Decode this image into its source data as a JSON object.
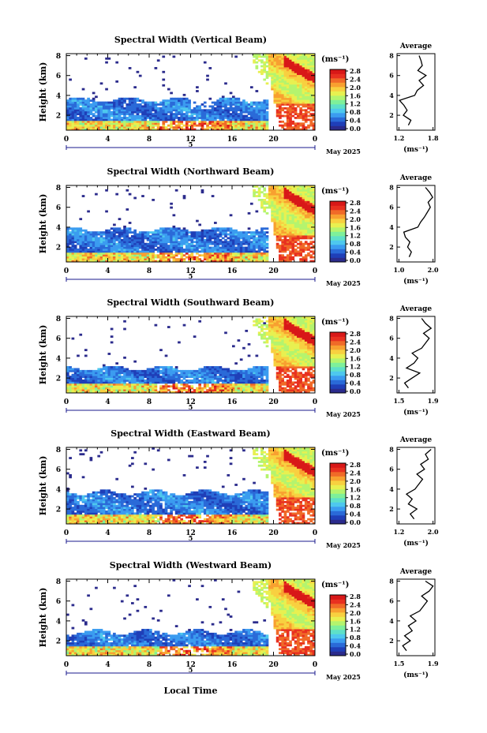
{
  "colors": {
    "colormap": [
      "#2b2b8c",
      "#1f3fb8",
      "#2a6ad8",
      "#3b9cf0",
      "#4ec8ee",
      "#5ee0c8",
      "#7ef09a",
      "#b4f46e",
      "#e8f050",
      "#f8d040",
      "#f8a030",
      "#f06a28",
      "#e83020",
      "#d81818"
    ],
    "missing": "#ffffff"
  },
  "global": {
    "xlabel_bottom": "Local Time",
    "date_label": "May 2025",
    "unit_label": "(ms⁻¹)",
    "avg_title": "Average",
    "avg_xlabel": "(ms⁻¹)",
    "ylabel": "Height (km)",
    "minor_marker": "5"
  },
  "chart_data": [
    {
      "type": "heatmap",
      "title": "Spectral Width (Vertical Beam)",
      "xlabel": "Local Time",
      "ylabel": "Height (km)",
      "x_ticks": [
        "0",
        "4",
        "8",
        "12",
        "16",
        "20",
        "0"
      ],
      "xlim": [
        0,
        24
      ],
      "y_ticks": [
        "2",
        "4",
        "6",
        "8"
      ],
      "ylim": [
        0.5,
        8.2
      ],
      "colorbar": {
        "ticks": [
          "0.0",
          "0.4",
          "0.8",
          "1.2",
          "1.6",
          "2.0",
          "2.4",
          "2.8"
        ],
        "range": [
          0,
          2.8
        ]
      },
      "average": {
        "x_ticks": [
          "1.2",
          "1.8"
        ],
        "xlim": [
          1.2,
          1.8
        ],
        "profile": [
          [
            1.0,
            1.38
          ],
          [
            1.5,
            1.42
          ],
          [
            2.0,
            1.3
          ],
          [
            2.5,
            1.36
          ],
          [
            3.0,
            1.31
          ],
          [
            3.5,
            1.24
          ],
          [
            4.0,
            1.48
          ],
          [
            4.5,
            1.52
          ],
          [
            5.0,
            1.62
          ],
          [
            5.5,
            1.55
          ],
          [
            6.0,
            1.66
          ],
          [
            6.5,
            1.53
          ],
          [
            7.0,
            1.6
          ],
          [
            7.5,
            1.58
          ],
          [
            8.0,
            1.55
          ]
        ]
      }
    },
    {
      "type": "heatmap",
      "title": "Spectral Width (Northward Beam)",
      "xlabel": "Local Time",
      "ylabel": "Height (km)",
      "x_ticks": [
        "0",
        "4",
        "8",
        "12",
        "16",
        "20",
        "0"
      ],
      "xlim": [
        0,
        24
      ],
      "y_ticks": [
        "2",
        "4",
        "6",
        "8"
      ],
      "ylim": [
        0.5,
        8.2
      ],
      "colorbar": {
        "ticks": [
          "0.0",
          "0.4",
          "0.8",
          "1.2",
          "1.6",
          "2.0",
          "2.4",
          "2.8"
        ],
        "range": [
          0,
          2.8
        ]
      },
      "average": {
        "x_ticks": [
          "1.0",
          "2.0"
        ],
        "xlim": [
          1.0,
          2.0
        ],
        "profile": [
          [
            1.0,
            1.32
          ],
          [
            1.5,
            1.38
          ],
          [
            2.0,
            1.28
          ],
          [
            2.5,
            1.34
          ],
          [
            3.0,
            1.22
          ],
          [
            3.5,
            1.18
          ],
          [
            4.0,
            1.55
          ],
          [
            4.5,
            1.62
          ],
          [
            5.0,
            1.72
          ],
          [
            5.5,
            1.8
          ],
          [
            6.0,
            1.88
          ],
          [
            6.5,
            1.82
          ],
          [
            7.0,
            1.94
          ],
          [
            7.5,
            1.86
          ],
          [
            8.0,
            1.75
          ]
        ]
      }
    },
    {
      "type": "heatmap",
      "title": "Spectral Width (Southward Beam)",
      "xlabel": "Local Time",
      "ylabel": "Height (km)",
      "x_ticks": [
        "0",
        "4",
        "8",
        "12",
        "16",
        "20",
        "0"
      ],
      "xlim": [
        0,
        24
      ],
      "y_ticks": [
        "2",
        "4",
        "6",
        "8"
      ],
      "ylim": [
        0.5,
        8.2
      ],
      "colorbar": {
        "ticks": [
          "0.0",
          "0.4",
          "0.8",
          "1.2",
          "1.6",
          "2.0",
          "2.4",
          "2.8"
        ],
        "range": [
          0,
          2.8
        ]
      },
      "average": {
        "x_ticks": [
          "1.5",
          "1.9"
        ],
        "xlim": [
          1.5,
          1.9
        ],
        "profile": [
          [
            1.0,
            1.62
          ],
          [
            1.5,
            1.58
          ],
          [
            2.0,
            1.66
          ],
          [
            2.5,
            1.74
          ],
          [
            3.0,
            1.6
          ],
          [
            3.5,
            1.68
          ],
          [
            4.0,
            1.72
          ],
          [
            4.5,
            1.66
          ],
          [
            5.0,
            1.76
          ],
          [
            5.5,
            1.8
          ],
          [
            6.0,
            1.84
          ],
          [
            6.5,
            1.78
          ],
          [
            7.0,
            1.86
          ],
          [
            7.5,
            1.8
          ],
          [
            8.0,
            1.76
          ]
        ]
      }
    },
    {
      "type": "heatmap",
      "title": "Spectral Width (Eastward Beam)",
      "xlabel": "Local Time",
      "ylabel": "Height (km)",
      "x_ticks": [
        "0",
        "4",
        "8",
        "12",
        "16",
        "20",
        "0"
      ],
      "xlim": [
        0,
        24
      ],
      "y_ticks": [
        "2",
        "4",
        "6",
        "8"
      ],
      "ylim": [
        0.5,
        8.2
      ],
      "colorbar": {
        "ticks": [
          "0.0",
          "0.4",
          "0.8",
          "1.2",
          "1.6",
          "2.0",
          "2.4",
          "2.8"
        ],
        "range": [
          0,
          2.8
        ]
      },
      "average": {
        "x_ticks": [
          "1.2",
          "2.0"
        ],
        "xlim": [
          1.2,
          2.0
        ],
        "profile": [
          [
            1.0,
            1.56
          ],
          [
            1.5,
            1.48
          ],
          [
            2.0,
            1.62
          ],
          [
            2.5,
            1.44
          ],
          [
            3.0,
            1.52
          ],
          [
            3.5,
            1.4
          ],
          [
            4.0,
            1.58
          ],
          [
            4.5,
            1.66
          ],
          [
            5.0,
            1.74
          ],
          [
            5.5,
            1.62
          ],
          [
            6.0,
            1.78
          ],
          [
            6.5,
            1.7
          ],
          [
            7.0,
            1.86
          ],
          [
            7.5,
            1.8
          ],
          [
            8.0,
            1.92
          ]
        ]
      }
    },
    {
      "type": "heatmap",
      "title": "Spectral Width (Westward Beam)",
      "xlabel": "Local Time",
      "ylabel": "Height (km)",
      "x_ticks": [
        "0",
        "4",
        "8",
        "12",
        "16",
        "20",
        "0"
      ],
      "xlim": [
        0,
        24
      ],
      "y_ticks": [
        "2",
        "4",
        "6",
        "8"
      ],
      "ylim": [
        0.5,
        8.2
      ],
      "colorbar": {
        "ticks": [
          "0.0",
          "0.4",
          "0.8",
          "1.2",
          "1.6",
          "2.0",
          "2.4",
          "2.8"
        ],
        "range": [
          0,
          2.8
        ]
      },
      "average": {
        "x_ticks": [
          "1.5",
          "1.9"
        ],
        "xlim": [
          1.5,
          1.9
        ],
        "profile": [
          [
            1.0,
            1.6
          ],
          [
            1.5,
            1.56
          ],
          [
            2.0,
            1.64
          ],
          [
            2.5,
            1.58
          ],
          [
            3.0,
            1.66
          ],
          [
            3.5,
            1.62
          ],
          [
            4.0,
            1.7
          ],
          [
            4.5,
            1.64
          ],
          [
            5.0,
            1.74
          ],
          [
            5.5,
            1.78
          ],
          [
            6.0,
            1.82
          ],
          [
            6.5,
            1.76
          ],
          [
            7.0,
            1.84
          ],
          [
            7.5,
            1.88
          ],
          [
            8.0,
            1.8
          ]
        ]
      }
    }
  ]
}
